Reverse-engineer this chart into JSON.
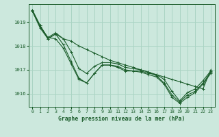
{
  "title": "Graphe pression niveau de la mer (hPa)",
  "background_color": "#cce8dd",
  "grid_color": "#aad4c4",
  "line_color": "#1a5c2a",
  "xlim": [
    -0.5,
    23.5
  ],
  "ylim": [
    1015.45,
    1019.75
  ],
  "yticks": [
    1016,
    1017,
    1018,
    1019
  ],
  "xticks": [
    0,
    1,
    2,
    3,
    4,
    5,
    6,
    7,
    8,
    9,
    10,
    11,
    12,
    13,
    14,
    15,
    16,
    17,
    18,
    19,
    20,
    21,
    22,
    23
  ],
  "series": [
    [
      1019.5,
      1018.85,
      1018.3,
      1018.5,
      1018.05,
      1017.35,
      1016.65,
      1016.45,
      1016.85,
      1017.2,
      1017.2,
      1017.15,
      1017.0,
      1016.95,
      1016.95,
      1016.85,
      1016.8,
      1016.6,
      1016.1,
      1015.7,
      1016.05,
      1016.2,
      1016.55,
      1016.95
    ],
    [
      1019.45,
      1018.8,
      1018.35,
      1018.55,
      1018.3,
      1017.75,
      1017.05,
      1016.85,
      1017.15,
      1017.3,
      1017.3,
      1017.25,
      1017.1,
      1017.05,
      1017.0,
      1016.9,
      1016.75,
      1016.45,
      1015.95,
      1015.65,
      1015.95,
      1016.1,
      1016.45,
      1016.9
    ],
    [
      1019.5,
      1018.85,
      1018.35,
      1018.3,
      1017.9,
      1017.25,
      1016.6,
      1016.45,
      1016.85,
      1017.2,
      1017.2,
      1017.1,
      1016.95,
      1016.95,
      1016.9,
      1016.8,
      1016.7,
      1016.4,
      1015.85,
      1015.6,
      1015.85,
      1016.05,
      1016.4,
      1016.85
    ],
    [
      1019.45,
      1018.75,
      1018.3,
      1018.5,
      1018.3,
      1018.2,
      1018.0,
      1017.85,
      1017.7,
      1017.55,
      1017.4,
      1017.3,
      1017.2,
      1017.1,
      1017.0,
      1016.9,
      1016.8,
      1016.7,
      1016.6,
      1016.5,
      1016.4,
      1016.3,
      1016.2,
      1017.0
    ]
  ]
}
